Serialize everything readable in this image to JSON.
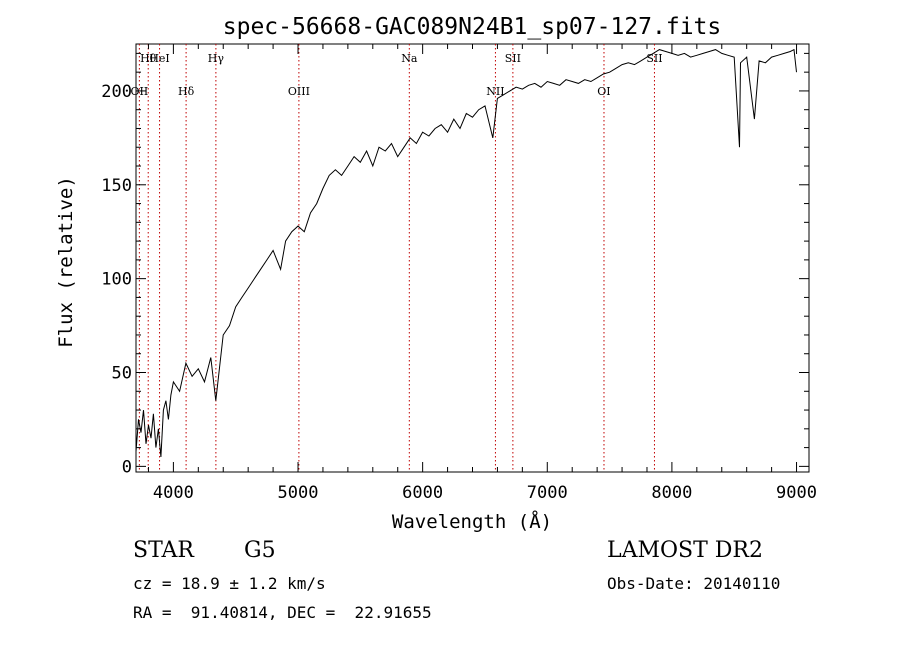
{
  "chart_data": {
    "type": "line",
    "title": "spec-56668-GAC089N24B1_sp07-127.fits",
    "xlabel": "Wavelength (Å)",
    "ylabel": "Flux (relative)",
    "xlim": [
      3700,
      9100
    ],
    "ylim": [
      -3,
      225
    ],
    "xticks": [
      4000,
      5000,
      6000,
      7000,
      8000,
      9000
    ],
    "yticks": [
      0,
      50,
      100,
      150,
      200
    ],
    "grid": false,
    "series": [
      {
        "x": [
          3700,
          3720,
          3740,
          3760,
          3780,
          3800,
          3820,
          3840,
          3860,
          3880,
          3900,
          3920,
          3940,
          3960,
          3980,
          4000,
          4050,
          4100,
          4150,
          4200,
          4250,
          4300,
          4340,
          4400,
          4450,
          4500,
          4550,
          4600,
          4650,
          4700,
          4750,
          4800,
          4860,
          4900,
          4950,
          5000,
          5050,
          5100,
          5150,
          5200,
          5250,
          5300,
          5350,
          5400,
          5450,
          5500,
          5550,
          5600,
          5650,
          5700,
          5750,
          5800,
          5850,
          5900,
          5950,
          6000,
          6050,
          6100,
          6150,
          6200,
          6250,
          6300,
          6350,
          6400,
          6450,
          6500,
          6563,
          6600,
          6650,
          6700,
          6750,
          6800,
          6850,
          6900,
          6950,
          7000,
          7050,
          7100,
          7150,
          7200,
          7250,
          7300,
          7350,
          7400,
          7450,
          7500,
          7550,
          7600,
          7650,
          7700,
          7750,
          7800,
          7850,
          7900,
          7950,
          8000,
          8050,
          8100,
          8150,
          8200,
          8250,
          8300,
          8350,
          8400,
          8450,
          8500,
          8542,
          8550,
          8600,
          8662,
          8700,
          8750,
          8800,
          8850,
          8900,
          8950,
          8980,
          9000
        ],
        "y": [
          8,
          25,
          18,
          30,
          12,
          22,
          15,
          28,
          10,
          20,
          5,
          30,
          35,
          25,
          38,
          45,
          40,
          55,
          48,
          52,
          45,
          58,
          35,
          70,
          75,
          85,
          90,
          95,
          100,
          105,
          110,
          115,
          105,
          120,
          125,
          128,
          125,
          135,
          140,
          148,
          155,
          158,
          155,
          160,
          165,
          162,
          168,
          160,
          170,
          168,
          172,
          165,
          170,
          175,
          172,
          178,
          176,
          180,
          182,
          178,
          185,
          180,
          188,
          186,
          190,
          192,
          175,
          196,
          198,
          200,
          202,
          201,
          203,
          204,
          202,
          205,
          204,
          203,
          206,
          205,
          204,
          206,
          205,
          207,
          209,
          210,
          212,
          214,
          215,
          214,
          216,
          218,
          220,
          222,
          221,
          220,
          219,
          220,
          218,
          219,
          220,
          221,
          222,
          220,
          219,
          218,
          170,
          215,
          218,
          185,
          216,
          215,
          218,
          219,
          220,
          221,
          222,
          210
        ]
      }
    ],
    "lines": [
      {
        "label": "Hθ",
        "x": 3798
      },
      {
        "label": "OII",
        "x": 3727
      },
      {
        "label": "HeI",
        "x": 3889
      },
      {
        "label": "Hδ",
        "x": 4102
      },
      {
        "label": "Hγ",
        "x": 4341
      },
      {
        "label": "OIII",
        "x": 5007
      },
      {
        "label": "Na",
        "x": 5893
      },
      {
        "label": "NII",
        "x": 6584
      },
      {
        "label": "SII",
        "x": 6724
      },
      {
        "label": "OI",
        "x": 7455
      },
      {
        "label": "SII",
        "x": 7860
      }
    ]
  },
  "info": {
    "object_class": "STAR",
    "subclass": "G5",
    "survey": "LAMOST DR2",
    "redshift": "cz = 18.9 ± 1.2 km/s",
    "obs_date": "Obs-Date: 20140110",
    "coords": "RA =  91.40814, DEC =  22.91655"
  }
}
